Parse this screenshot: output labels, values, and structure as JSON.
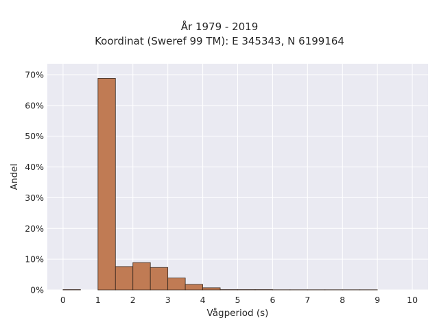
{
  "chart_data": {
    "type": "bar",
    "title_lines": [
      "År 1979 - 2019",
      "Koordinat (Sweref 99 TM): E 345343, N 6199164"
    ],
    "xlabel": "Vågperiod (s)",
    "ylabel": "Andel",
    "xlim": [
      -0.45,
      10.45
    ],
    "ylim": [
      0,
      0.7
    ],
    "x_ticks": [
      0,
      1,
      2,
      3,
      4,
      5,
      6,
      7,
      8,
      9,
      10
    ],
    "y_ticks": [
      0,
      0.1,
      0.2,
      0.3,
      0.4,
      0.5,
      0.6,
      0.7
    ],
    "y_tick_labels": [
      "0%",
      "10%",
      "20%",
      "30%",
      "40%",
      "50%",
      "60%",
      "70%"
    ],
    "bin_width": 0.5,
    "bin_starts": [
      0,
      0.5,
      1,
      1.5,
      2,
      2.5,
      3,
      3.5,
      4,
      4.5,
      5,
      5.5,
      6,
      6.5,
      7,
      7.5,
      8,
      8.5
    ],
    "values": [
      0.001,
      0.0,
      0.688,
      0.076,
      0.089,
      0.073,
      0.039,
      0.018,
      0.007,
      0.001,
      0.001,
      0.001,
      0.0005,
      0.0005,
      0.0005,
      0.0005,
      0.0005,
      0.0005
    ],
    "grid": true,
    "colors": {
      "bar_fill": "#c07b54",
      "bar_stroke": "#3a2a20",
      "plot_background": "#eaeaf2",
      "grid": "#ffffff"
    }
  }
}
